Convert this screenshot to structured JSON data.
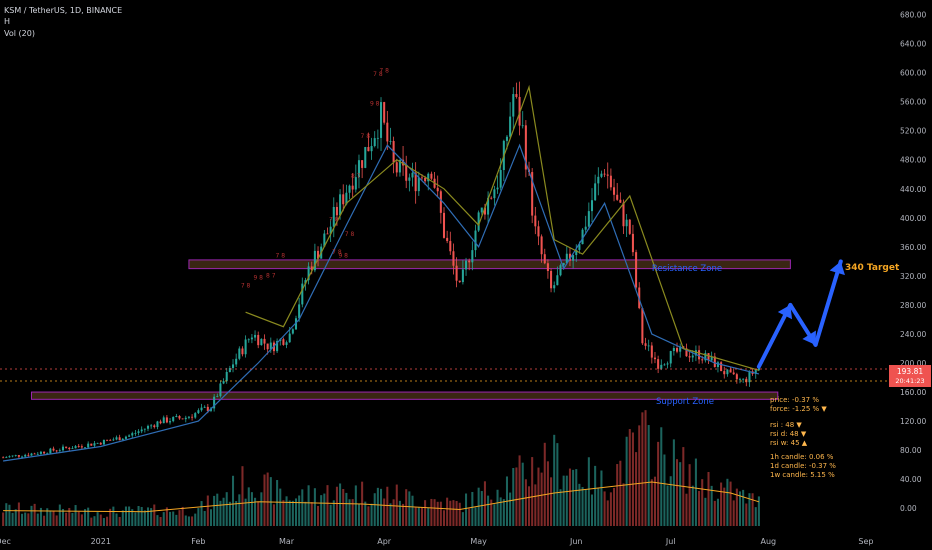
{
  "header": {
    "title": "KSM / TetherUS, 1D, BINANCE",
    "line2": "H",
    "volume_label": "Vol (20)"
  },
  "price_badge": {
    "price": "193.81",
    "sub": "20:41:23"
  },
  "colors": {
    "background": "#000000",
    "candle_up": "#26a69a",
    "candle_down": "#ef5350",
    "ma_fast": "#2f6db5",
    "ma_slow": "#8a8a1f",
    "vol_ma": "#f5a623",
    "zone_fill": "#4d3319",
    "zone_border": "#9c27b0",
    "zone_text": "#2962ff",
    "arrow": "#2962ff",
    "price_badge": "#ef5350",
    "marker_text": "#b03030",
    "axis_text": "#b2b5be"
  },
  "zones": [
    {
      "name": "Resistance Zone",
      "low": 330,
      "high": 342,
      "start": "2021-01-29",
      "end": "2021-08-08"
    },
    {
      "name": "Support Zone",
      "low": 150,
      "high": 160,
      "start": "2020-12-10",
      "end": "2021-08-04"
    }
  ],
  "target": {
    "label": "340 Target",
    "value": 340
  },
  "projection": [
    {
      "date": "2021-07-29",
      "value": 195
    },
    {
      "date": "2021-08-08",
      "value": 280
    },
    {
      "date": "2021-08-16",
      "value": 225
    },
    {
      "date": "2021-08-24",
      "value": 340
    }
  ],
  "indicators": {
    "price": "price: -0.37 %",
    "force": "force: -1.25 % ▼",
    "rsi": "rsi   :  48 ▼",
    "rsi_d": "rsi d:  48 ▼",
    "rsi_w": "rsi w:  45 ▲",
    "c1h": "1h   candle:   0.06 %",
    "c1d": "1d   candle:  -0.37 %",
    "c1w": "1w   candle:   5.15 %"
  },
  "markers": [
    {
      "date": "2021-02-16",
      "value": 304,
      "text": "7 8"
    },
    {
      "date": "2021-02-20",
      "value": 315,
      "text": "9 8"
    },
    {
      "date": "2021-02-24",
      "value": 318,
      "text": "8 7"
    },
    {
      "date": "2021-03-16",
      "value": 395,
      "text": "7 8"
    },
    {
      "date": "2021-03-17",
      "value": 350,
      "text": "7 8"
    },
    {
      "date": "2021-03-19",
      "value": 345,
      "text": "9 8"
    },
    {
      "date": "2021-03-21",
      "value": 375,
      "text": "7 8"
    },
    {
      "date": "2021-03-23",
      "value": 455,
      "text": "8 7"
    },
    {
      "date": "2021-03-26",
      "value": 510,
      "text": "7 8"
    },
    {
      "date": "2021-03-29",
      "value": 555,
      "text": "9 8"
    },
    {
      "date": "2021-03-30",
      "value": 595,
      "text": "7 8"
    },
    {
      "date": "2021-04-01",
      "value": 600,
      "text": "7 8"
    },
    {
      "date": "2021-02-27",
      "value": 345,
      "text": "7 8"
    }
  ],
  "chart_data": {
    "type": "candlestick",
    "title": "KSM / TetherUS, 1D, BINANCE",
    "x_range": [
      "2020-11-30",
      "2021-09-08"
    ],
    "y_range": [
      -30,
      700
    ],
    "y_ticks": [
      0,
      40,
      80,
      120,
      160,
      200,
      240,
      280,
      320,
      360,
      400,
      440,
      480,
      520,
      560,
      600,
      640,
      680
    ],
    "y_tick_labels": [
      "0.00",
      "40.00",
      "80.00",
      "120.00",
      "160.00",
      "200.00",
      "240.00",
      "280.00",
      "320.00",
      "360.00",
      "400.00",
      "440.00",
      "480.00",
      "520.00",
      "560.00",
      "600.00",
      "640.00",
      "680.00"
    ],
    "x_ticks": [
      {
        "date": "2020-12-01",
        "label": "Dec"
      },
      {
        "date": "2021-01-01",
        "label": "2021"
      },
      {
        "date": "2021-02-01",
        "label": "Feb"
      },
      {
        "date": "2021-03-01",
        "label": "Mar"
      },
      {
        "date": "2021-04-01",
        "label": "Apr"
      },
      {
        "date": "2021-05-01",
        "label": "May"
      },
      {
        "date": "2021-06-01",
        "label": "Jun"
      },
      {
        "date": "2021-07-01",
        "label": "Jul"
      },
      {
        "date": "2021-08-01",
        "label": "Aug"
      },
      {
        "date": "2021-09-01",
        "label": "Sep"
      }
    ],
    "volume_scale_max": 100,
    "closes": [
      {
        "date": "2020-12-01",
        "value": 70
      },
      {
        "date": "2020-12-10",
        "value": 75
      },
      {
        "date": "2020-12-20",
        "value": 82
      },
      {
        "date": "2020-12-31",
        "value": 90
      },
      {
        "date": "2021-01-10",
        "value": 100
      },
      {
        "date": "2021-01-20",
        "value": 120
      },
      {
        "date": "2021-01-28",
        "value": 125
      },
      {
        "date": "2021-02-05",
        "value": 140
      },
      {
        "date": "2021-02-12",
        "value": 200
      },
      {
        "date": "2021-02-18",
        "value": 240
      },
      {
        "date": "2021-02-24",
        "value": 222
      },
      {
        "date": "2021-03-02",
        "value": 240
      },
      {
        "date": "2021-03-08",
        "value": 330
      },
      {
        "date": "2021-03-14",
        "value": 380
      },
      {
        "date": "2021-03-20",
        "value": 440
      },
      {
        "date": "2021-03-27",
        "value": 500
      },
      {
        "date": "2021-03-31",
        "value": 540
      },
      {
        "date": "2021-04-04",
        "value": 470
      },
      {
        "date": "2021-04-10",
        "value": 450
      },
      {
        "date": "2021-04-16",
        "value": 470
      },
      {
        "date": "2021-04-20",
        "value": 380
      },
      {
        "date": "2021-04-25",
        "value": 300
      },
      {
        "date": "2021-05-01",
        "value": 400
      },
      {
        "date": "2021-05-08",
        "value": 460
      },
      {
        "date": "2021-05-12",
        "value": 570
      },
      {
        "date": "2021-05-15",
        "value": 520
      },
      {
        "date": "2021-05-19",
        "value": 380
      },
      {
        "date": "2021-05-24",
        "value": 300
      },
      {
        "date": "2021-05-28",
        "value": 330
      },
      {
        "date": "2021-06-03",
        "value": 380
      },
      {
        "date": "2021-06-07",
        "value": 440
      },
      {
        "date": "2021-06-10",
        "value": 470
      },
      {
        "date": "2021-06-14",
        "value": 420
      },
      {
        "date": "2021-06-18",
        "value": 380
      },
      {
        "date": "2021-06-22",
        "value": 230
      },
      {
        "date": "2021-06-27",
        "value": 200
      },
      {
        "date": "2021-07-03",
        "value": 215
      },
      {
        "date": "2021-07-10",
        "value": 212
      },
      {
        "date": "2021-07-15",
        "value": 200
      },
      {
        "date": "2021-07-20",
        "value": 180
      },
      {
        "date": "2021-07-24",
        "value": 175
      },
      {
        "date": "2021-07-29",
        "value": 194
      }
    ],
    "volume": [
      {
        "date": "2020-12-01",
        "value": 15
      },
      {
        "date": "2021-01-01",
        "value": 12
      },
      {
        "date": "2021-02-01",
        "value": 14
      },
      {
        "date": "2021-02-17",
        "value": 40
      },
      {
        "date": "2021-03-01",
        "value": 25
      },
      {
        "date": "2021-03-20",
        "value": 30
      },
      {
        "date": "2021-04-01",
        "value": 28
      },
      {
        "date": "2021-04-25",
        "value": 18
      },
      {
        "date": "2021-05-15",
        "value": 45
      },
      {
        "date": "2021-05-23",
        "value": 60
      },
      {
        "date": "2021-06-10",
        "value": 35
      },
      {
        "date": "2021-06-22",
        "value": 75
      },
      {
        "date": "2021-07-10",
        "value": 40
      },
      {
        "date": "2021-07-29",
        "value": 20
      }
    ],
    "fast_ma": [
      {
        "date": "2020-12-01",
        "value": 65
      },
      {
        "date": "2021-01-01",
        "value": 85
      },
      {
        "date": "2021-02-01",
        "value": 120
      },
      {
        "date": "2021-02-20",
        "value": 200
      },
      {
        "date": "2021-03-05",
        "value": 260
      },
      {
        "date": "2021-03-20",
        "value": 390
      },
      {
        "date": "2021-04-02",
        "value": 500
      },
      {
        "date": "2021-04-20",
        "value": 420
      },
      {
        "date": "2021-05-01",
        "value": 360
      },
      {
        "date": "2021-05-14",
        "value": 500
      },
      {
        "date": "2021-05-28",
        "value": 330
      },
      {
        "date": "2021-06-10",
        "value": 420
      },
      {
        "date": "2021-06-25",
        "value": 240
      },
      {
        "date": "2021-07-15",
        "value": 200
      },
      {
        "date": "2021-07-29",
        "value": 185
      }
    ],
    "slow_ma": [
      {
        "date": "2021-02-16",
        "value": 270
      },
      {
        "date": "2021-02-28",
        "value": 250
      },
      {
        "date": "2021-03-20",
        "value": 420
      },
      {
        "date": "2021-04-05",
        "value": 480
      },
      {
        "date": "2021-04-20",
        "value": 440
      },
      {
        "date": "2021-05-01",
        "value": 390
      },
      {
        "date": "2021-05-17",
        "value": 580
      },
      {
        "date": "2021-05-25",
        "value": 370
      },
      {
        "date": "2021-06-03",
        "value": 350
      },
      {
        "date": "2021-06-18",
        "value": 430
      },
      {
        "date": "2021-07-05",
        "value": 220
      },
      {
        "date": "2021-07-29",
        "value": 190
      }
    ],
    "vol_ma": [
      {
        "date": "2020-12-01",
        "value": 14
      },
      {
        "date": "2021-01-15",
        "value": 13
      },
      {
        "date": "2021-02-20",
        "value": 22
      },
      {
        "date": "2021-03-25",
        "value": 20
      },
      {
        "date": "2021-04-25",
        "value": 15
      },
      {
        "date": "2021-05-25",
        "value": 30
      },
      {
        "date": "2021-06-25",
        "value": 40
      },
      {
        "date": "2021-07-20",
        "value": 30
      },
      {
        "date": "2021-07-29",
        "value": 22
      }
    ]
  }
}
